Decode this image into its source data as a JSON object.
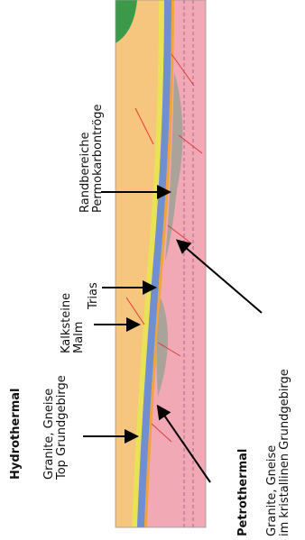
{
  "labels": {
    "hydrothermal": "Hydrothermal",
    "hydro_line1": "Granite, Gneise",
    "hydro_line2": "Top Grundgebirge",
    "kalk_line1": "Kalksteine",
    "kalk_line2": "Malm",
    "trias": "Trias",
    "rand_line1": "Randbereiche",
    "rand_line2": "Permokarbontröge",
    "petrothermal": "Petrothermal",
    "petro_line1": "Granite, Gneise",
    "petro_line2": "im kristallinen Grundgebirge"
  },
  "colors": {
    "basement": "#f1a9b6",
    "sediment_upper": "#f6c57e",
    "yellow_layer": "#e9e255",
    "malm": "#6f8fd0",
    "trias_band": "#f0a43c",
    "permokarbon": "#a9a39a",
    "green_top": "#3a9a4a",
    "faults": "#e23b3b"
  }
}
